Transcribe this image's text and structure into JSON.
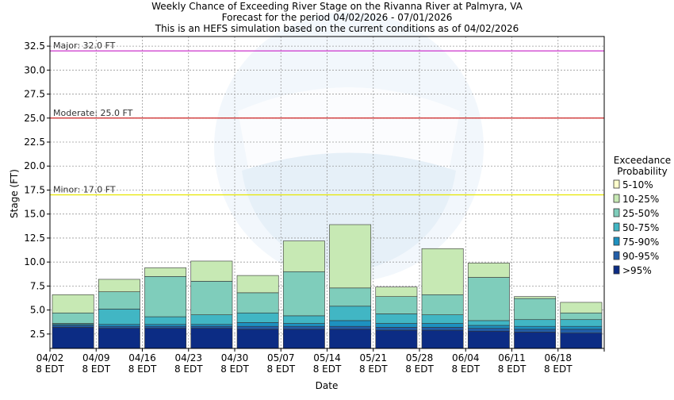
{
  "chart_data": {
    "type": "bar",
    "title_lines": [
      "Weekly Chance of Exceeding River Stage on the Rivanna River at Palmyra, VA",
      "Forecast for the period 04/02/2026 - 07/01/2026",
      "This is an HEFS simulation based on the current conditions as of 04/02/2026"
    ],
    "xlabel": "Date",
    "ylabel": "Stage (FT)",
    "ylim": [
      1,
      33.5
    ],
    "yticks": [
      2.5,
      5.0,
      7.5,
      10.0,
      12.5,
      15.0,
      17.5,
      20.0,
      22.5,
      25.0,
      27.5,
      30.0,
      32.5
    ],
    "ytick_labels": [
      "2.5",
      "5.0",
      "7.5",
      "10.0",
      "12.5",
      "15.0",
      "17.5",
      "20.0",
      "22.5",
      "25.0",
      "27.5",
      "30.0",
      "32.5"
    ],
    "xtick_labels": [
      [
        "04/02",
        "8 EDT"
      ],
      [
        "04/09",
        "8 EDT"
      ],
      [
        "04/16",
        "8 EDT"
      ],
      [
        "04/23",
        "8 EDT"
      ],
      [
        "04/30",
        "8 EDT"
      ],
      [
        "05/07",
        "8 EDT"
      ],
      [
        "05/14",
        "8 EDT"
      ],
      [
        "05/21",
        "8 EDT"
      ],
      [
        "05/28",
        "8 EDT"
      ],
      [
        "06/04",
        "8 EDT"
      ],
      [
        "06/11",
        "8 EDT"
      ],
      [
        "06/18",
        "8 EDT"
      ]
    ],
    "grid": true,
    "legend_position": "right",
    "legend_title_lines": [
      "Exceedance",
      "Probability"
    ],
    "flood_levels": [
      {
        "label": "Major: 32.0 FT",
        "value": 32.0,
        "color": "#cc33cc"
      },
      {
        "label": "Moderate: 25.0 FT",
        "value": 25.0,
        "color": "#cc2222"
      },
      {
        "label": "Minor: 17.0 FT",
        "value": 17.0,
        "color": "#e6e600"
      }
    ],
    "bands": [
      {
        "name": "5-10%",
        "color": "#ffffcc"
      },
      {
        "name": "10-25%",
        "color": "#c7e9b4"
      },
      {
        "name": "25-50%",
        "color": "#7fcdbb"
      },
      {
        "name": "50-75%",
        "color": "#41b6c4"
      },
      {
        "name": "75-90%",
        "color": "#1d91c0"
      },
      {
        "name": "90-95%",
        "color": "#225ea8"
      },
      {
        "name": ">95%",
        "color": "#0c2c84"
      }
    ],
    "weeks": [
      [
        1,
        3.2,
        3.4,
        3.5,
        3.6,
        4.7,
        6.6
      ],
      [
        1,
        3.1,
        3.3,
        3.5,
        5.1,
        6.9,
        8.2
      ],
      [
        1,
        3.1,
        3.3,
        3.5,
        4.3,
        8.5,
        9.4
      ],
      [
        1,
        3.1,
        3.3,
        3.5,
        4.5,
        8.0,
        10.1
      ],
      [
        1,
        3.0,
        3.3,
        3.7,
        4.7,
        6.8,
        8.6
      ],
      [
        1,
        3.0,
        3.3,
        3.6,
        4.4,
        9.0,
        12.2
      ],
      [
        1,
        3.0,
        3.3,
        3.9,
        5.4,
        7.3,
        13.9
      ],
      [
        1,
        2.9,
        3.2,
        3.6,
        4.6,
        6.4,
        7.4
      ],
      [
        1,
        2.9,
        3.2,
        3.6,
        4.5,
        6.6,
        11.4
      ],
      [
        1,
        2.8,
        3.1,
        3.4,
        3.9,
        8.4,
        9.9
      ],
      [
        1,
        2.7,
        3.0,
        3.3,
        4.0,
        6.2,
        6.4
      ],
      [
        1,
        2.6,
        3.0,
        3.3,
        4.0,
        4.7,
        5.8
      ]
    ]
  }
}
